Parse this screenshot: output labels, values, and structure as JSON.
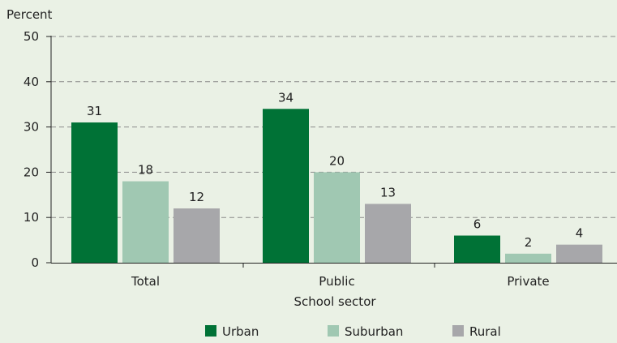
{
  "chart_data": {
    "type": "bar",
    "ylabel": "Percent",
    "xlabel": "School sector",
    "categories": [
      "Total",
      "Public",
      "Private"
    ],
    "series": [
      {
        "name": "Urban",
        "values": [
          31,
          34,
          6
        ],
        "color": "#007236"
      },
      {
        "name": "Suburban",
        "values": [
          18,
          20,
          2
        ],
        "color": "#a0c8b2"
      },
      {
        "name": "Rural",
        "values": [
          12,
          13,
          4
        ],
        "color": "#a7a7aa"
      }
    ],
    "ylim": [
      0,
      50
    ],
    "yticks": [
      0,
      10,
      20,
      30,
      40,
      50
    ],
    "grid": true,
    "legend_position": "bottom-center"
  }
}
